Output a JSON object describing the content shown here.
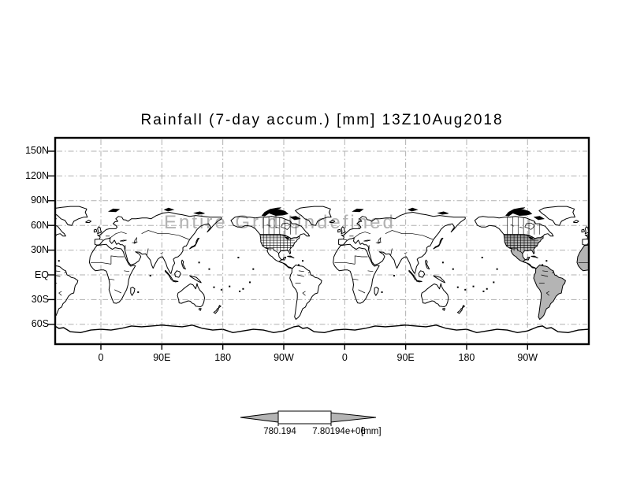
{
  "title": "Rainfall (7-day accum.) [mm] 13Z10Aug2018",
  "watermark": "Entire Grid Undefined",
  "axes": {
    "lat_ticks": [
      {
        "label": "150N",
        "lat": 150
      },
      {
        "label": "120N",
        "lat": 120
      },
      {
        "label": "90N",
        "lat": 90
      },
      {
        "label": "60N",
        "lat": 60
      },
      {
        "label": "30N",
        "lat": 30
      },
      {
        "label": "EQ",
        "lat": 0
      },
      {
        "label": "30S",
        "lat": -30
      },
      {
        "label": "60S",
        "lat": -60
      }
    ],
    "lon_ticks": [
      {
        "label": "0",
        "lon": 0
      },
      {
        "label": "90E",
        "lon": 90
      },
      {
        "label": "180",
        "lon": 180
      },
      {
        "label": "90W",
        "lon": 270
      },
      {
        "label": "0",
        "lon": 360
      },
      {
        "label": "90E",
        "lon": 450
      },
      {
        "label": "180",
        "lon": 540
      },
      {
        "label": "90W",
        "lon": 630
      }
    ]
  },
  "colorbar": {
    "min_label": "780.194",
    "max_label": "7.80194e+06",
    "units_label": "[mm]"
  },
  "colors": {
    "land_shade": "#b4b4b4",
    "gridline": "#b0b0b0",
    "watermark": "#b2b2b2",
    "frame": "#000000",
    "colorbar_arrow": "#b4b4b4"
  },
  "chart_data": {
    "type": "heatmap",
    "subtype": "world-map-shaded-plot",
    "title": "Rainfall (7-day accum.) [mm] 13Z10Aug2018",
    "variable": "Rainfall (7-day accum.)",
    "units": "mm",
    "valid_time": "13Z10Aug2018",
    "status_message": "Entire Grid Undefined",
    "x_tick_labels": [
      "0",
      "90E",
      "180",
      "90W",
      "0",
      "90E",
      "180",
      "90W"
    ],
    "y_tick_labels": [
      "150N",
      "120N",
      "90N",
      "60N",
      "30N",
      "EQ",
      "30S",
      "60S"
    ],
    "map_repetitions": 2,
    "grid": true,
    "gridline_style": "gray dash-dot",
    "colorbar": {
      "min": 780.194,
      "min_label": "780.194",
      "max": 7801940,
      "max_label": "7.80194e+06",
      "units": "[mm]",
      "position": "bottom-center",
      "shape": "arrow-rectangle-arrow"
    },
    "shaded_regions": [
      "North America (second repetition)",
      "South America (second repetition)",
      "West Africa (right edge)"
    ]
  }
}
